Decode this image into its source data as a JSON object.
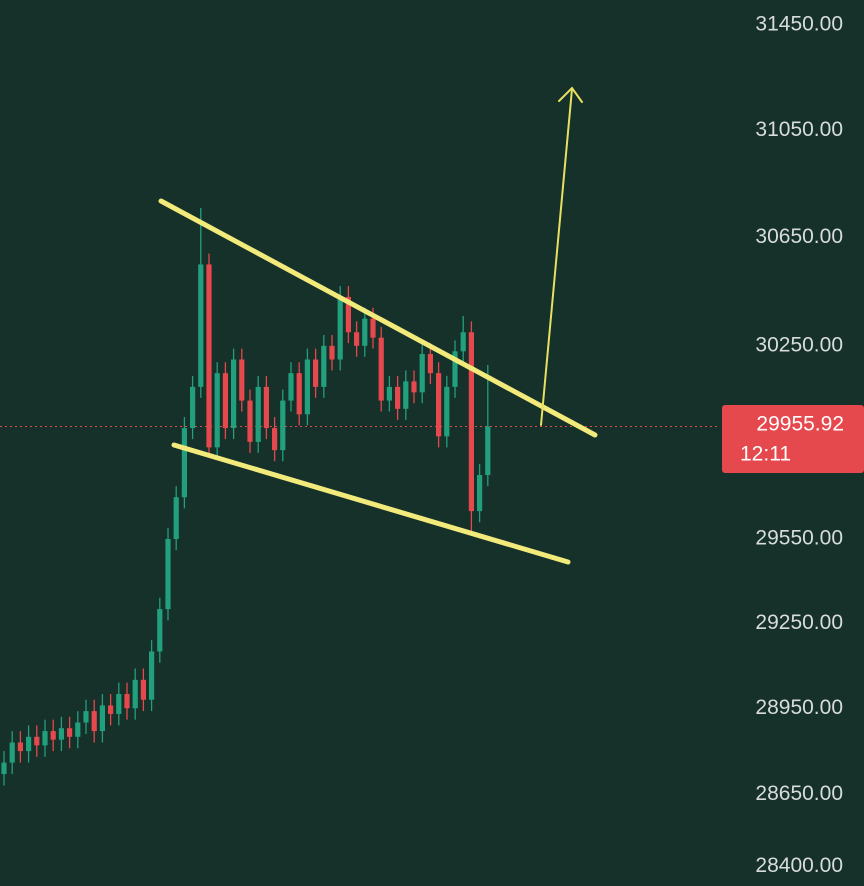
{
  "chart_data": {
    "type": "candlestick",
    "log_scale": true,
    "ylim": [
      28333,
      31545
    ],
    "yticks": [
      {
        "value": 31450,
        "label": "31450.00"
      },
      {
        "value": 31050,
        "label": "31050.00"
      },
      {
        "value": 30650,
        "label": "30650.00"
      },
      {
        "value": 30250,
        "label": "30250.00"
      },
      {
        "value": 29550,
        "label": "29550.00"
      },
      {
        "value": 29250,
        "label": "29250.00"
      },
      {
        "value": 28950,
        "label": "28950.00"
      },
      {
        "value": 28650,
        "label": "28650.00"
      },
      {
        "value": 28400,
        "label": "28400.00"
      }
    ],
    "up_color": "#22a07d",
    "down_color": "#e5484d",
    "open": [
      28720,
      28760,
      28830,
      28800,
      28850,
      28820,
      28870,
      28840,
      28880,
      28850,
      28900,
      28940,
      28870,
      28960,
      28930,
      29000,
      28950,
      29050,
      28980,
      29150,
      29300,
      29550,
      29700,
      29950,
      30100,
      30550,
      29880,
      30150,
      29950,
      30200,
      30050,
      29900,
      30100,
      29950,
      29870,
      30050,
      30150,
      30000,
      30200,
      30100,
      30250,
      30200,
      30430,
      30300,
      30250,
      30350,
      30280,
      30050,
      30100,
      30020,
      30120,
      30080,
      30220,
      30150,
      29920,
      30100,
      30230,
      30300,
      29650,
      29780
    ],
    "high": [
      28800,
      28870,
      28870,
      28890,
      28890,
      28910,
      28910,
      28920,
      28920,
      28940,
      28980,
      28980,
      29000,
      29000,
      29040,
      29040,
      29090,
      29090,
      29190,
      29340,
      29590,
      29740,
      29990,
      30140,
      30760,
      30590,
      30190,
      30190,
      30240,
      30240,
      30090,
      30140,
      30140,
      29990,
      30090,
      30190,
      30190,
      30240,
      30240,
      30290,
      30290,
      30470,
      30470,
      30340,
      30390,
      30390,
      30320,
      30140,
      30140,
      30160,
      30160,
      30260,
      30260,
      30190,
      30140,
      30270,
      30360,
      30340,
      29820,
      30180
    ],
    "low": [
      28680,
      28720,
      28760,
      28760,
      28780,
      28780,
      28800,
      28800,
      28810,
      28810,
      28860,
      28830,
      28830,
      28890,
      28890,
      28910,
      28910,
      28940,
      28940,
      29110,
      29260,
      29510,
      29660,
      29910,
      30060,
      29850,
      29840,
      29910,
      29910,
      30010,
      29860,
      29860,
      29910,
      29830,
      29830,
      30010,
      29960,
      29960,
      30060,
      30060,
      30160,
      30160,
      30260,
      30210,
      30210,
      30240,
      30010,
      30010,
      29980,
      29980,
      30040,
      30040,
      30110,
      29880,
      29880,
      30060,
      30190,
      29570,
      29610,
      29740
    ],
    "close": [
      28760,
      28830,
      28800,
      28850,
      28820,
      28870,
      28840,
      28880,
      28850,
      28900,
      28940,
      28870,
      28960,
      28930,
      29000,
      28950,
      29050,
      28980,
      29150,
      29300,
      29550,
      29700,
      29950,
      30100,
      30550,
      29880,
      30150,
      29950,
      30200,
      30050,
      29900,
      30100,
      29950,
      29870,
      30050,
      30150,
      30000,
      30200,
      30100,
      30250,
      30200,
      30430,
      30300,
      30250,
      30350,
      30280,
      30050,
      30100,
      30020,
      30120,
      30080,
      30220,
      30150,
      29920,
      30100,
      30230,
      30300,
      29650,
      29780,
      29955.92
    ],
    "last_price": 29955.92,
    "last_price_color": "#e5484d",
    "countdown": "12:11"
  }
}
